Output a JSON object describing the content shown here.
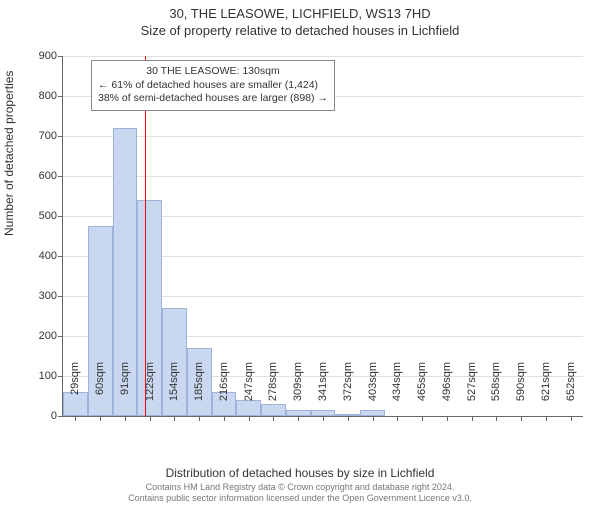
{
  "titles": {
    "main": "30, THE LEASOWE, LICHFIELD, WS13 7HD",
    "sub": "Size of property relative to detached houses in Lichfield"
  },
  "axes": {
    "ylabel": "Number of detached properties",
    "xlabel": "Distribution of detached houses by size in Lichfield",
    "ymax": 900,
    "ytick_step": 100,
    "xtick_labels": [
      "29sqm",
      "60sqm",
      "91sqm",
      "122sqm",
      "154sqm",
      "185sqm",
      "216sqm",
      "247sqm",
      "278sqm",
      "309sqm",
      "341sqm",
      "372sqm",
      "403sqm",
      "434sqm",
      "465sqm",
      "496sqm",
      "527sqm",
      "558sqm",
      "590sqm",
      "621sqm",
      "652sqm"
    ]
  },
  "chart": {
    "type": "histogram",
    "bar_fill": "#c9d8f0",
    "bar_stroke": "#9db3d9",
    "background": "#ffffff",
    "grid_color": "#e0e0e0",
    "values": [
      60,
      475,
      720,
      540,
      270,
      170,
      60,
      40,
      30,
      15,
      15,
      5,
      15,
      0,
      0,
      0,
      0,
      0,
      0,
      0,
      0
    ],
    "reference_line": {
      "x_index": 3.3,
      "color": "#ff0000",
      "width": 1
    }
  },
  "annotation": {
    "lines": [
      "30 THE LEASOWE: 130sqm",
      "← 61% of detached houses are smaller (1,424)",
      "38% of semi-detached houses are larger (898) →"
    ]
  },
  "footer": {
    "line1": "Contains HM Land Registry data © Crown copyright and database right 2024.",
    "line2": "Contains public sector information licensed under the Open Government Licence v3.0."
  },
  "style": {
    "title_fontsize": 13,
    "tick_fontsize": 11,
    "label_fontsize": 12,
    "annotation_fontsize": 10.5,
    "footer_fontsize": 9
  }
}
